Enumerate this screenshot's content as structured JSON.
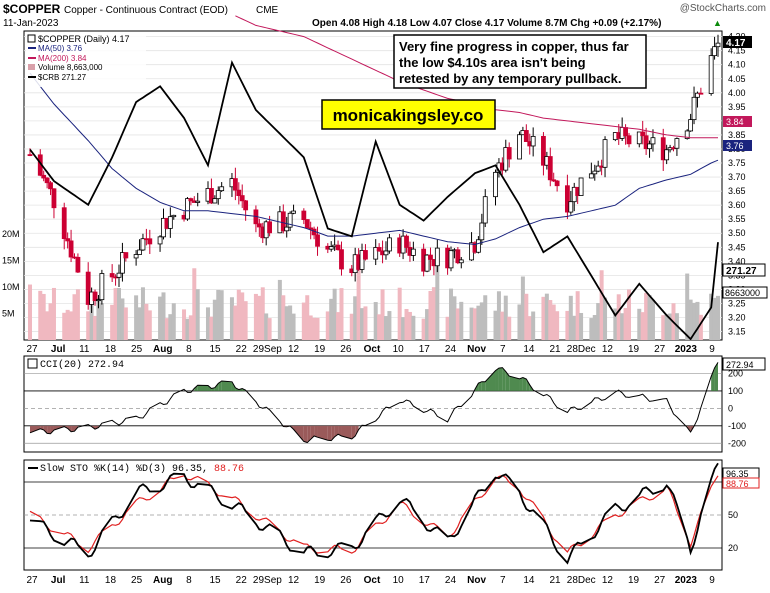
{
  "header": {
    "symbol": "$COPPER",
    "name": "Copper - Continuous Contract (EOD)",
    "exchange": "CME",
    "date": "11-Jan-2023",
    "watermark": "@StockCharts.com",
    "ohlc_line": "Open 4.08  High 4.18  Low 4.07  Close 4.17  Volume 8.7M  Chg +0.09 (+2.17%)",
    "chg_arrow": "▲"
  },
  "legend": {
    "price": "$COPPER (Daily) 4.17",
    "ma50": "MA(50) 3.76",
    "ma200": "MA(200) 3.84",
    "volume": "Volume 8,663,000",
    "crb": "$CRB 271.27"
  },
  "annotation": {
    "line1": "Very fine progress in copper, thus far",
    "line2": "the low $4.10s area isn't being",
    "line3": "retested by any temporary pullback.",
    "brand": "monicakingsley.co"
  },
  "price_axis_labels": [
    "4.20",
    "4.15",
    "4.10",
    "4.05",
    "4.00",
    "3.95",
    "3.90",
    "3.85",
    "3.80",
    "3.75",
    "3.70",
    "3.65",
    "3.60",
    "3.55",
    "3.50",
    "3.45",
    "3.40",
    "3.35",
    "3.30",
    "3.25",
    "3.20",
    "3.15"
  ],
  "volume_axis_labels": [
    "20M",
    "15M",
    "10M",
    "5M"
  ],
  "tags": {
    "close": "4.17",
    "ma200": "3.84",
    "ma50": "3.76",
    "crb": "271.27",
    "volume": "8663000",
    "cci": "272.94",
    "sto_k": "96.35",
    "sto_d": "88.76"
  },
  "x_axis_labels": [
    "27",
    "Jul",
    "11",
    "18",
    "25",
    "Aug",
    "8",
    "15",
    "22",
    "29Sep",
    "12",
    "19",
    "26",
    "Oct",
    "10",
    "17",
    "24",
    "Nov",
    "7",
    "14",
    "21",
    "28Dec",
    "12",
    "19",
    "27",
    "2023",
    "9"
  ],
  "cci_panel": {
    "title": "CCI(20) 272.94",
    "axis_labels": [
      "200",
      "100",
      "0",
      "-100",
      "-200"
    ]
  },
  "sto_panel": {
    "title": "Slow STO %K(14) %D(3) 96.35, 88.76",
    "title_main": "Slow STO %K(14) %D(3) 96.35, ",
    "title_d": "88.76",
    "axis_labels": [
      "80",
      "50",
      "20"
    ]
  },
  "colors": {
    "up_candle": "#000000",
    "down_candle": "#cc0033",
    "ma50": "#1a237e",
    "ma200": "#c2185b",
    "crb": "#000000",
    "volume_down": "#f0b8c0",
    "volume_up": "#bdbdbd",
    "cci_fill_pos": "#4f8a4f",
    "cci_fill_neg": "#9a5a5a",
    "sto_d": "#e02020",
    "brand_bg": "#ffff00"
  },
  "chart_data": [
    {
      "type": "line",
      "title": "$COPPER (Daily) 4.17",
      "x_dates": [
        "2022-06-24",
        "2022-07-01",
        "2022-07-11",
        "2022-07-18",
        "2022-07-25",
        "2022-08-01",
        "2022-08-08",
        "2022-08-15",
        "2022-08-22",
        "2022-08-29",
        "2022-09-12",
        "2022-09-19",
        "2022-09-26",
        "2022-10-03",
        "2022-10-10",
        "2022-10-17",
        "2022-10-24",
        "2022-11-01",
        "2022-11-07",
        "2022-11-14",
        "2022-11-21",
        "2022-11-28",
        "2022-12-12",
        "2022-12-19",
        "2022-12-27",
        "2023-01-03",
        "2023-01-09",
        "2023-01-11"
      ],
      "series": [
        {
          "name": "$COPPER",
          "values": [
            3.78,
            3.62,
            3.27,
            3.35,
            3.45,
            3.53,
            3.59,
            3.64,
            3.68,
            3.52,
            3.55,
            3.44,
            3.38,
            3.42,
            3.47,
            3.41,
            3.42,
            3.47,
            3.72,
            3.86,
            3.76,
            3.62,
            3.84,
            3.82,
            3.8,
            3.92,
            4.12,
            4.17
          ]
        },
        {
          "name": "MA(50)",
          "values": [
            4.07,
            3.96,
            3.83,
            3.73,
            3.66,
            3.61,
            3.58,
            3.58,
            3.57,
            3.56,
            3.52,
            3.49,
            3.49,
            3.5,
            3.51,
            3.49,
            3.47,
            3.46,
            3.48,
            3.52,
            3.55,
            3.56,
            3.6,
            3.66,
            3.69,
            3.71,
            3.75,
            3.76
          ]
        },
        {
          "name": "MA(200)",
          "values": [
            null,
            null,
            null,
            null,
            null,
            null,
            null,
            null,
            4.28,
            4.24,
            4.2,
            4.16,
            4.12,
            4.08,
            4.04,
            4.01,
            3.98,
            3.96,
            3.94,
            3.93,
            3.91,
            3.9,
            3.88,
            3.87,
            3.85,
            3.84,
            3.84,
            3.84
          ]
        },
        {
          "name": "$CRB",
          "values": [
            283,
            279,
            276,
            282,
            289,
            291,
            287,
            281,
            294,
            288,
            282,
            273,
            272,
            284,
            276,
            274,
            277,
            280,
            281,
            276,
            270,
            272,
            262,
            266,
            262,
            259,
            263,
            271.27
          ]
        }
      ],
      "ylim": [
        3.12,
        4.22
      ],
      "y_ticks": [
        3.15,
        3.2,
        3.25,
        3.3,
        3.35,
        3.4,
        3.45,
        3.5,
        3.55,
        3.6,
        3.65,
        3.7,
        3.75,
        3.8,
        3.85,
        3.9,
        3.95,
        4.0,
        4.05,
        4.1,
        4.15,
        4.2
      ],
      "grid": true,
      "legend": "top-left"
    },
    {
      "type": "bar",
      "title": "Volume 8,663,000",
      "ylim": [
        0,
        25000000
      ],
      "y_ticks": [
        "5M",
        "10M",
        "15M",
        "20M"
      ],
      "last_value": 8663000
    },
    {
      "type": "area",
      "title": "CCI(20) 272.94",
      "x_dates": [
        "2022-06-24",
        "2022-07-11",
        "2022-07-25",
        "2022-08-08",
        "2022-08-22",
        "2022-09-12",
        "2022-09-26",
        "2022-10-10",
        "2022-10-24",
        "2022-11-07",
        "2022-11-14",
        "2022-11-28",
        "2022-12-12",
        "2022-12-27",
        "2023-01-03",
        "2023-01-11"
      ],
      "values": [
        -140,
        -110,
        -60,
        100,
        150,
        -180,
        -160,
        50,
        -60,
        230,
        180,
        -20,
        90,
        40,
        -150,
        272.94
      ],
      "ylim": [
        -250,
        300
      ],
      "y_ticks": [
        -200,
        -100,
        0,
        100,
        200
      ],
      "last_value": 272.94
    },
    {
      "type": "line",
      "title": "Slow STO %K(14) %D(3) 96.35, 88.76",
      "x_dates": [
        "2022-06-24",
        "2022-07-11",
        "2022-07-25",
        "2022-08-08",
        "2022-08-22",
        "2022-09-12",
        "2022-09-26",
        "2022-10-10",
        "2022-10-24",
        "2022-11-07",
        "2022-11-14",
        "2022-11-28",
        "2022-12-12",
        "2022-12-27",
        "2023-01-03",
        "2023-01-11"
      ],
      "series": [
        {
          "name": "%K",
          "values": [
            45,
            15,
            70,
            85,
            60,
            15,
            20,
            65,
            25,
            90,
            70,
            10,
            55,
            80,
            20,
            96.35
          ]
        },
        {
          "name": "%D",
          "values": [
            50,
            20,
            60,
            88,
            65,
            20,
            18,
            60,
            30,
            85,
            75,
            15,
            50,
            75,
            25,
            88.76
          ]
        }
      ],
      "ylim": [
        0,
        100
      ],
      "y_ticks": [
        20,
        50,
        80
      ]
    }
  ]
}
